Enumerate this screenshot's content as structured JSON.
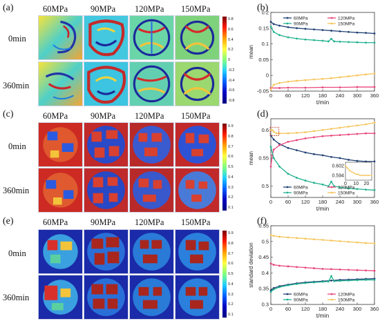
{
  "panels": {
    "a": "(a)",
    "b": "(b)",
    "c": "(c)",
    "d": "(d)",
    "e": "(e)",
    "f": "(f)"
  },
  "columns": [
    "60MPa",
    "90MPa",
    "120MPa",
    "150MPa"
  ],
  "rows": [
    "0min",
    "360min"
  ],
  "colorbars": {
    "a": [
      "0.8",
      "0.6",
      "0.4",
      "0.2",
      "0",
      "-0.2",
      "-0.4",
      "-0.6",
      "-0.8"
    ],
    "c": [
      "0.9",
      "0.8",
      "0.7",
      "0.6",
      "0.5",
      "0.4",
      "0.3",
      "0.2",
      "0.1"
    ],
    "e": [
      "0.9",
      "0.8",
      "0.7",
      "0.6",
      "0.5",
      "0.4",
      "0.3",
      "0.2",
      "0.1"
    ]
  },
  "colors": {
    "s60": "#1f3f73",
    "s90": "#1fb08e",
    "s120": "#e8457a",
    "s150": "#f5c45a"
  },
  "chart_data": [
    {
      "id": "b",
      "type": "line",
      "xlabel": "t/min",
      "ylabel": "mean",
      "xlim": [
        0,
        360
      ],
      "ylim": [
        -0.05,
        0.2
      ],
      "xticks": [
        0,
        60,
        120,
        180,
        240,
        300,
        360
      ],
      "yticks": [
        -0.05,
        0,
        0.05,
        0.1,
        0.15,
        0.2
      ],
      "ytick_labels": [
        "-0.05",
        "0",
        "0.05",
        "0.1",
        "0.15",
        "0.2"
      ],
      "legend": "top",
      "series": [
        {
          "name": "60MPa",
          "color": "#1f3f73",
          "x": [
            0,
            10,
            30,
            60,
            90,
            120,
            150,
            180,
            210,
            240,
            270,
            300,
            330,
            360
          ],
          "y": [
            0.17,
            0.163,
            0.158,
            0.153,
            0.15,
            0.148,
            0.146,
            0.144,
            0.142,
            0.14,
            0.138,
            0.136,
            0.135,
            0.133
          ]
        },
        {
          "name": "120MPa",
          "color": "#e8457a",
          "x": [
            0,
            30,
            60,
            120,
            180,
            240,
            300,
            360
          ],
          "y": [
            -0.04,
            -0.04,
            -0.039,
            -0.039,
            -0.038,
            -0.038,
            -0.037,
            -0.037
          ]
        },
        {
          "name": "90MPa",
          "color": "#1fb08e",
          "x": [
            0,
            10,
            30,
            60,
            90,
            120,
            150,
            180,
            200,
            210,
            220,
            240,
            270,
            300,
            330,
            360
          ],
          "y": [
            0.155,
            0.138,
            0.128,
            0.121,
            0.117,
            0.114,
            0.112,
            0.11,
            0.108,
            0.116,
            0.108,
            0.107,
            0.106,
            0.105,
            0.104,
            0.104
          ]
        },
        {
          "name": "150MPa",
          "color": "#f5c45a",
          "x": [
            0,
            10,
            30,
            60,
            90,
            120,
            150,
            180,
            210,
            240,
            270,
            300,
            330,
            360
          ],
          "y": [
            -0.045,
            -0.03,
            -0.024,
            -0.02,
            -0.017,
            -0.015,
            -0.013,
            -0.011,
            -0.009,
            -0.006,
            -0.003,
            0,
            0.003,
            0.006
          ]
        }
      ]
    },
    {
      "id": "d",
      "type": "line",
      "xlabel": "t/min",
      "ylabel": "mean",
      "xlim": [
        0,
        360
      ],
      "ylim": [
        0.48,
        0.62
      ],
      "xticks": [
        0,
        60,
        120,
        180,
        240,
        300,
        360
      ],
      "yticks": [
        0.5,
        0.55,
        0.6
      ],
      "ytick_labels": [
        "0.5",
        "0.55",
        "0.6"
      ],
      "legend": "bottom",
      "series": [
        {
          "name": "60MPa",
          "color": "#1f3f73",
          "x": [
            0,
            10,
            30,
            60,
            90,
            120,
            150,
            180,
            210,
            240,
            270,
            300,
            330,
            360
          ],
          "y": [
            0.59,
            0.583,
            0.575,
            0.568,
            0.564,
            0.56,
            0.557,
            0.555,
            0.552,
            0.55,
            0.547,
            0.545,
            0.544,
            0.544
          ]
        },
        {
          "name": "120MPa",
          "color": "#e8457a",
          "x": [
            0,
            5,
            10,
            30,
            60,
            90,
            120,
            150,
            180,
            210,
            240,
            270,
            300,
            330,
            360
          ],
          "y": [
            0.535,
            0.555,
            0.565,
            0.573,
            0.579,
            0.582,
            0.585,
            0.587,
            0.589,
            0.59,
            0.591,
            0.592,
            0.593,
            0.594,
            0.594
          ]
        },
        {
          "name": "90MPa",
          "color": "#1fb08e",
          "x": [
            0,
            10,
            30,
            60,
            90,
            120,
            150,
            180,
            200,
            210,
            220,
            240,
            270,
            300,
            330,
            360
          ],
          "y": [
            0.57,
            0.55,
            0.535,
            0.522,
            0.515,
            0.51,
            0.506,
            0.503,
            0.5,
            0.508,
            0.5,
            0.498,
            0.496,
            0.495,
            0.494,
            0.493
          ]
        },
        {
          "name": "150MPa",
          "color": "#f5c45a",
          "x": [
            0,
            5,
            10,
            20,
            30,
            60,
            90,
            120,
            150,
            180,
            210,
            240,
            270,
            300,
            330,
            360
          ],
          "y": [
            0.6,
            0.6,
            0.597,
            0.594,
            0.594,
            0.594,
            0.595,
            0.596,
            0.598,
            0.6,
            0.602,
            0.604,
            0.606,
            0.608,
            0.61,
            0.613
          ]
        }
      ],
      "inset": {
        "xlim": [
          0,
          25
        ],
        "ylim": [
          0.59,
          0.605
        ],
        "xticks": [
          0,
          10,
          20
        ],
        "yticks": [
          0.594,
          0.602
        ],
        "ytick_labels": [
          "0.594",
          "0.602"
        ],
        "series": [
          {
            "name": "150MPa",
            "color": "#f5c45a",
            "x": [
              0,
              2,
              4,
              6,
              8,
              10,
              12,
              14,
              16,
              18,
              20,
              22,
              25
            ],
            "y": [
              0.602,
              0.6,
              0.598,
              0.597,
              0.596,
              0.595,
              0.595,
              0.594,
              0.594,
              0.594,
              0.594,
              0.594,
              0.594
            ]
          }
        ]
      }
    },
    {
      "id": "f",
      "type": "line",
      "xlabel": "t/min",
      "ylabel": "standard deviation",
      "xlim": [
        0,
        360
      ],
      "ylim": [
        0.3,
        0.55
      ],
      "xticks": [
        0,
        60,
        120,
        180,
        240,
        300,
        360
      ],
      "yticks": [
        0.3,
        0.35,
        0.4,
        0.45,
        0.5,
        0.55
      ],
      "ytick_labels": [
        "0.3",
        "0.35",
        "0.4",
        "0.45",
        "0.5",
        "0.55"
      ],
      "legend": "bottom",
      "series": [
        {
          "name": "60MPa",
          "color": "#1f3f73",
          "x": [
            0,
            10,
            30,
            60,
            90,
            120,
            150,
            180,
            210,
            240,
            270,
            300,
            330,
            360
          ],
          "y": [
            0.345,
            0.352,
            0.358,
            0.363,
            0.367,
            0.37,
            0.372,
            0.374,
            0.376,
            0.378,
            0.379,
            0.38,
            0.381,
            0.382
          ]
        },
        {
          "name": "120MPa",
          "color": "#e8457a",
          "x": [
            0,
            10,
            30,
            60,
            90,
            120,
            150,
            180,
            210,
            240,
            270,
            300,
            330,
            360
          ],
          "y": [
            0.43,
            0.426,
            0.423,
            0.421,
            0.419,
            0.417,
            0.415,
            0.413,
            0.412,
            0.411,
            0.41,
            0.409,
            0.408,
            0.407
          ]
        },
        {
          "name": "90MPa",
          "color": "#1fb08e",
          "x": [
            0,
            10,
            30,
            60,
            90,
            120,
            150,
            180,
            200,
            210,
            220,
            240,
            270,
            300,
            330,
            360
          ],
          "y": [
            0.34,
            0.348,
            0.355,
            0.361,
            0.365,
            0.368,
            0.37,
            0.372,
            0.373,
            0.39,
            0.374,
            0.375,
            0.376,
            0.377,
            0.378,
            0.378
          ]
        },
        {
          "name": "150MPa",
          "color": "#f5c45a",
          "x": [
            0,
            10,
            30,
            60,
            90,
            120,
            150,
            180,
            210,
            240,
            270,
            300,
            330,
            360
          ],
          "y": [
            0.52,
            0.518,
            0.515,
            0.513,
            0.511,
            0.509,
            0.507,
            0.505,
            0.503,
            0.501,
            0.499,
            0.497,
            0.495,
            0.494
          ]
        }
      ]
    }
  ]
}
